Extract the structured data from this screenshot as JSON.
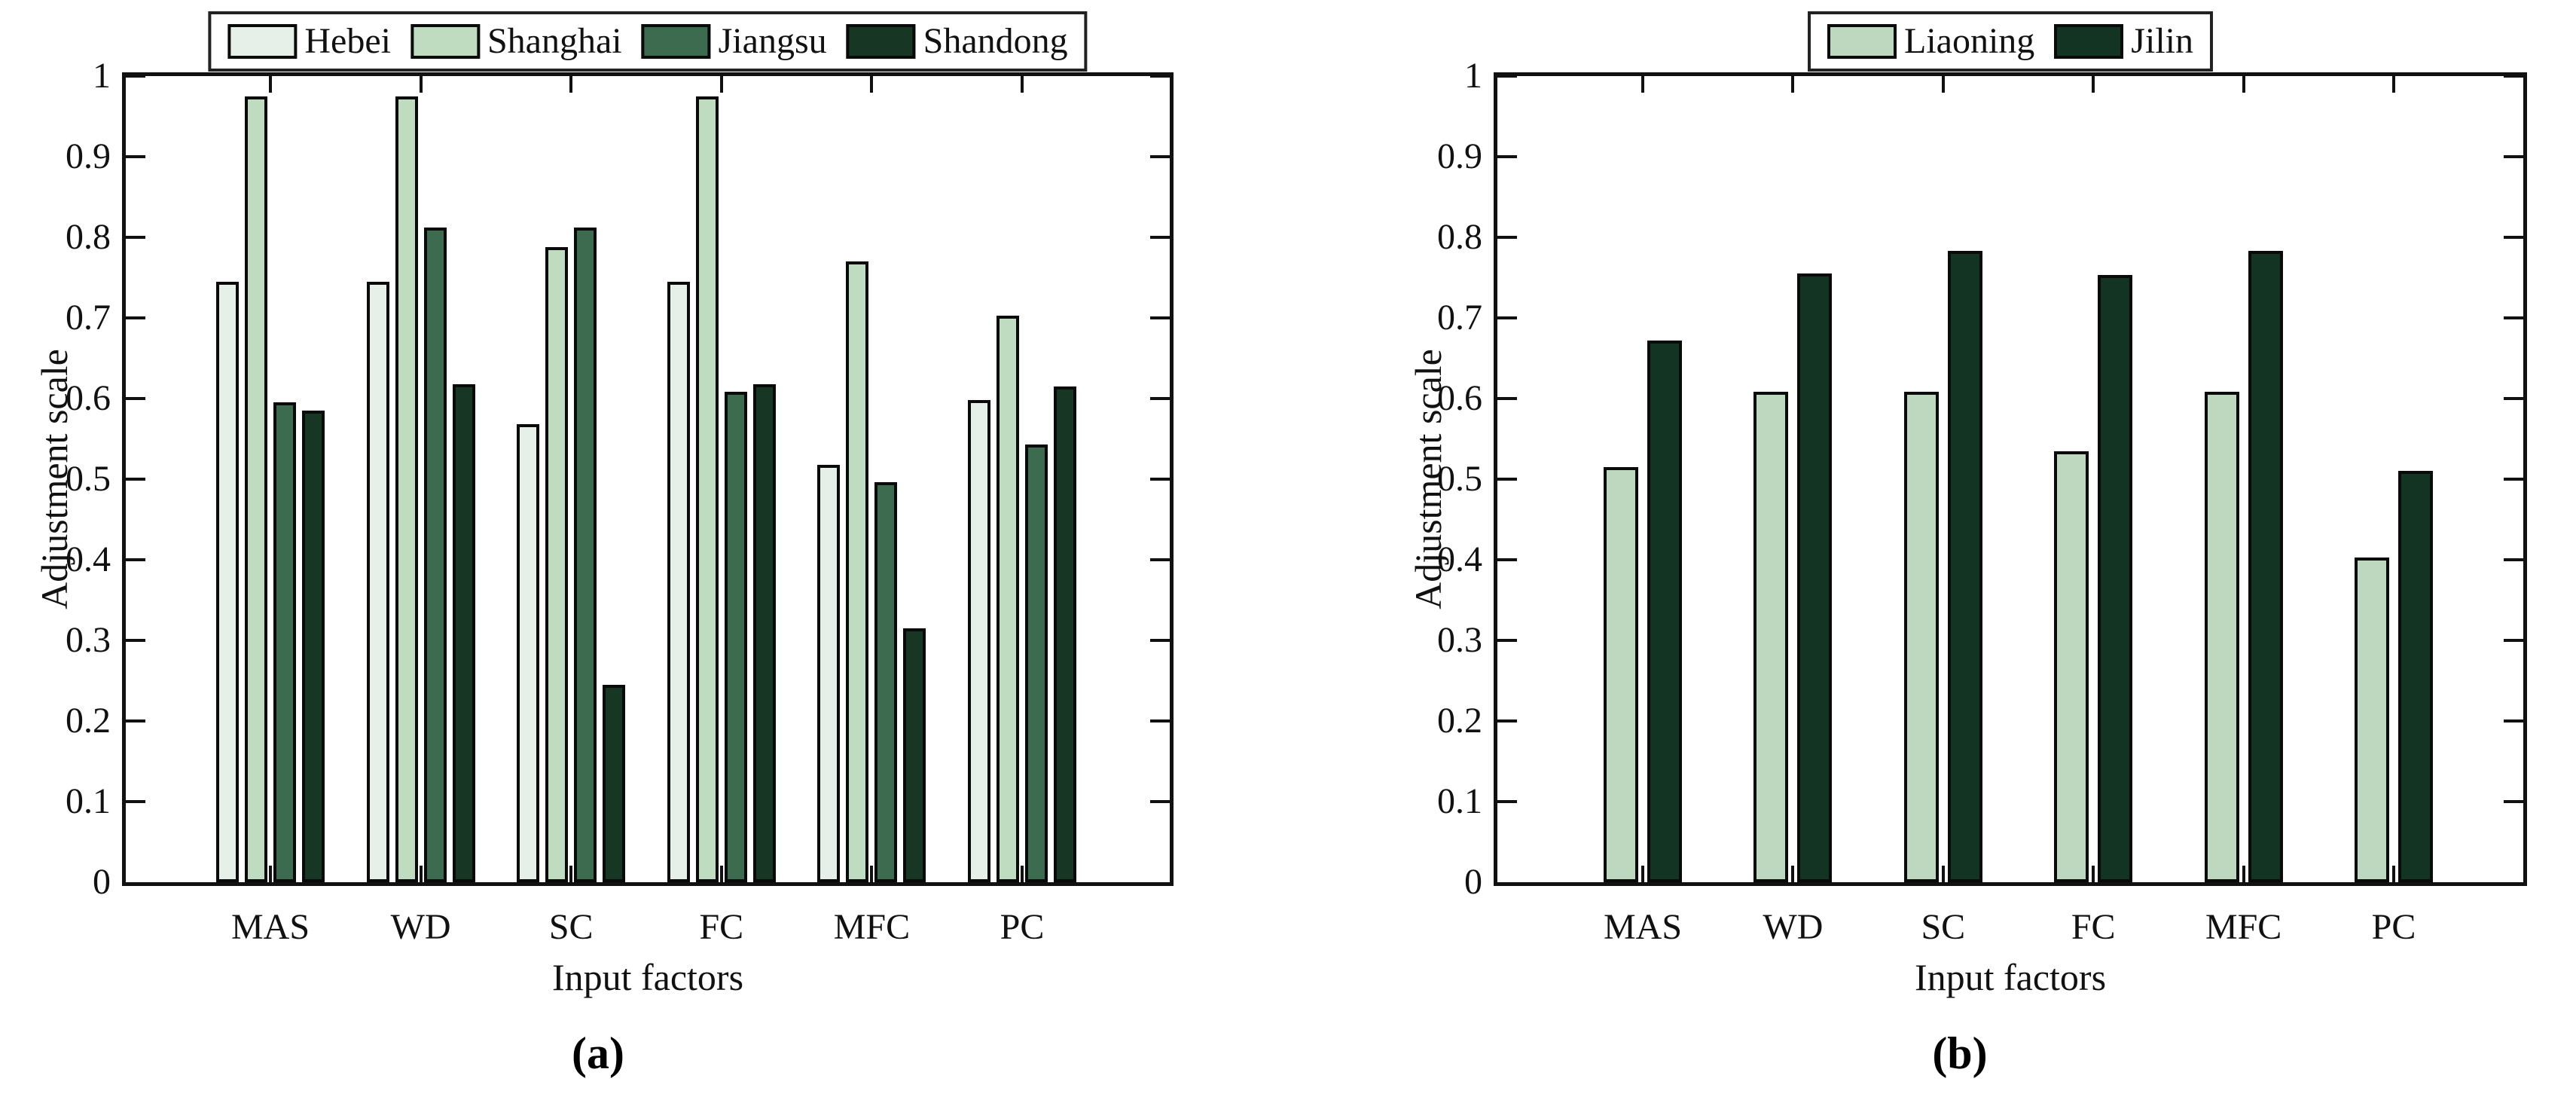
{
  "figure": {
    "description": "Two grouped bar charts of adjustment scale by input factor",
    "background": "#ffffff",
    "edge_color": "#0a0a0a"
  },
  "chart_data": [
    {
      "type": "bar",
      "panel": "a",
      "caption": "(a)",
      "xlabel": "Input factors",
      "ylabel": "Adjustment scale",
      "ylim": [
        0,
        1
      ],
      "ytick_step": 0.1,
      "ytick_labels": [
        "0",
        "0.1",
        "0.2",
        "0.3",
        "0.4",
        "0.5",
        "0.6",
        "0.7",
        "0.8",
        "0.9",
        "1"
      ],
      "categories": [
        "MAS",
        "WD",
        "SC",
        "FC",
        "MFC",
        "PC"
      ],
      "grid": false,
      "legend_position": "top-center-outside",
      "series": [
        {
          "name": "Hebei",
          "color": "#e7f0e8",
          "values": [
            0.745,
            0.745,
            0.568,
            0.745,
            0.518,
            0.598
          ]
        },
        {
          "name": "Shanghai",
          "color": "#bfdcc1",
          "values": [
            0.975,
            0.975,
            0.788,
            0.975,
            0.77,
            0.703
          ]
        },
        {
          "name": "Jiangsu",
          "color": "#3d6b50",
          "values": [
            0.595,
            0.812,
            0.812,
            0.608,
            0.496,
            0.543
          ]
        },
        {
          "name": "Shandong",
          "color": "#173724",
          "values": [
            0.585,
            0.618,
            0.245,
            0.618,
            0.315,
            0.615
          ]
        }
      ]
    },
    {
      "type": "bar",
      "panel": "b",
      "caption": "(b)",
      "xlabel": "Input factors",
      "ylabel": "Adjustment scale",
      "ylim": [
        0,
        1
      ],
      "ytick_step": 0.1,
      "ytick_labels": [
        "0",
        "0.1",
        "0.2",
        "0.3",
        "0.4",
        "0.5",
        "0.6",
        "0.7",
        "0.8",
        "0.9",
        "1"
      ],
      "categories": [
        "MAS",
        "WD",
        "SC",
        "FC",
        "MFC",
        "PC"
      ],
      "grid": false,
      "legend_position": "top-center-outside",
      "series": [
        {
          "name": "Liaoning",
          "color": "#bed7bf",
          "values": [
            0.515,
            0.608,
            0.608,
            0.535,
            0.608,
            0.403
          ]
        },
        {
          "name": "Jilin",
          "color": "#143423",
          "values": [
            0.672,
            0.755,
            0.783,
            0.753,
            0.783,
            0.51
          ]
        }
      ]
    }
  ]
}
